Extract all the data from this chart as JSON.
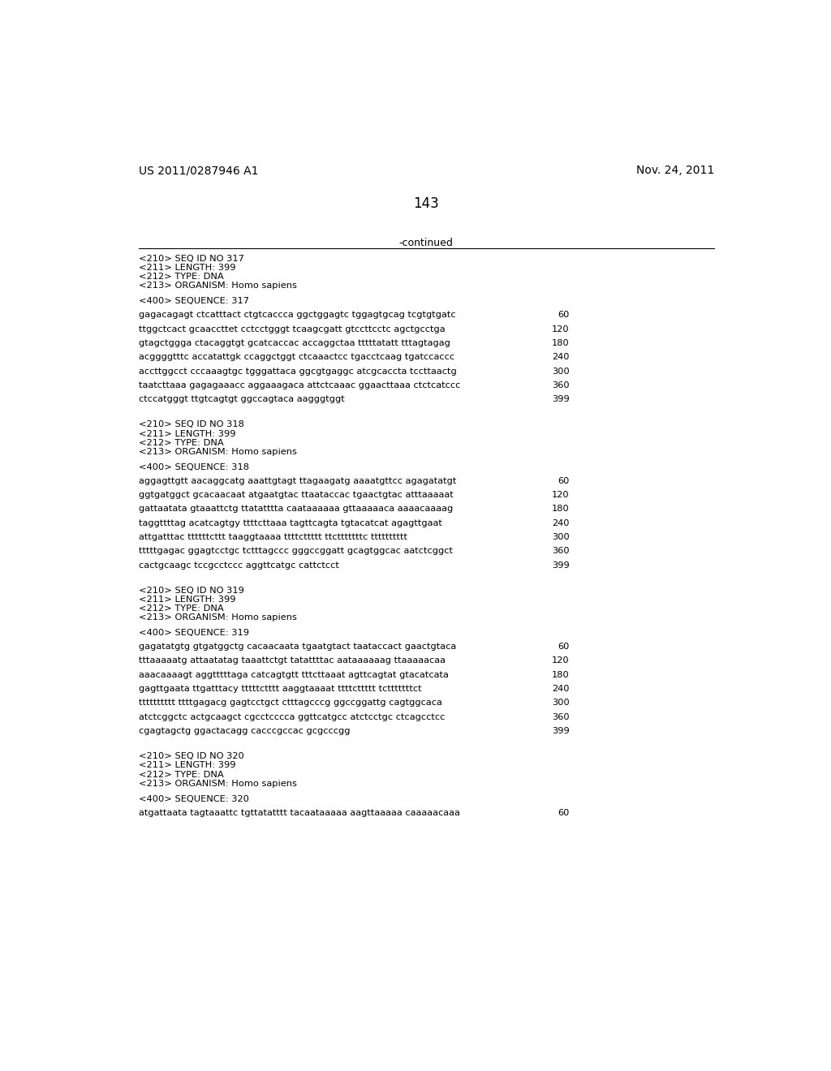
{
  "header_left": "US 2011/0287946 A1",
  "header_right": "Nov. 24, 2011",
  "page_number": "143",
  "continued_label": "-continued",
  "background_color": "#ffffff",
  "text_color": "#000000",
  "sequences": [
    {
      "id": "317",
      "length": "399",
      "type": "DNA",
      "organism": "Homo sapiens",
      "lines": [
        [
          "gagacagagt ctcatttact ctgtcaccca ggctggagtc tggagtgcag tcgtgtgatc",
          "60"
        ],
        [
          "ttggctcact gcaaccttet cctcctgggt tcaagcgatt gtccttcctc agctgcctga",
          "120"
        ],
        [
          "gtagctggga ctacaggtgt gcatcaccac accaggctaa tttttatatt tttagtagag",
          "180"
        ],
        [
          "acggggtttc accatattgk ccaggctggt ctcaaactcc tgacctcaag tgatccaccc",
          "240"
        ],
        [
          "accttggcct cccaaagtgc tgggattaca ggcgtgaggc atcgcaccta tccttaactg",
          "300"
        ],
        [
          "taatcttaaa gagagaaacc aggaaagaca attctcaaac ggaacttaaa ctctcatccc",
          "360"
        ],
        [
          "ctccatgggt ttgtcagtgt ggccagtaca aagggtggt",
          "399"
        ]
      ]
    },
    {
      "id": "318",
      "length": "399",
      "type": "DNA",
      "organism": "Homo sapiens",
      "lines": [
        [
          "aggagttgtt aacaggcatg aaattgtagt ttagaagatg aaaatgttcc agagatatgt",
          "60"
        ],
        [
          "ggtgatggct gcacaacaat atgaatgtac ttaataccac tgaactgtac atttaaaaat",
          "120"
        ],
        [
          "gattaatata gtaaattctg ttatatttta caataaaaaa gttaaaaaca aaaacaaaag",
          "180"
        ],
        [
          "taggttttag acatcagtgy ttttcttaaa tagttcagta tgtacatcat agagttgaat",
          "240"
        ],
        [
          "attgatttac ttttttcttt taaggtaaaa ttttcttttt ttctttttttc tttttttttt",
          "300"
        ],
        [
          "tttttgagac ggagtcctgc tctttagccc gggccggatt gcagtggcac aatctcggct",
          "360"
        ],
        [
          "cactgcaagc tccgcctccc aggttcatgc cattctcct",
          "399"
        ]
      ]
    },
    {
      "id": "319",
      "length": "399",
      "type": "DNA",
      "organism": "Homo sapiens",
      "lines": [
        [
          "gagatatgtg gtgatggctg cacaacaata tgaatgtact taataccact gaactgtaca",
          "60"
        ],
        [
          "tttaaaaatg attaatatag taaattctgt tatattttac aataaaaaag ttaaaaacaa",
          "120"
        ],
        [
          "aaacaaaagt aggtttttaga catcagtgtt tttcttaaat agttcagtat gtacatcata",
          "180"
        ],
        [
          "gagttgaata ttgatttacy tttttctttt aaggtaaaat ttttcttttt tctttttttct",
          "240"
        ],
        [
          "tttttttttt ttttgagacg gagtcctgct ctttagcccg ggccggattg cagtggcaca",
          "300"
        ],
        [
          "atctcggctc actgcaagct cgcctcccca ggttcatgcc atctcctgc ctcagcctcc",
          "360"
        ],
        [
          "cgagtagctg ggactacagg cacccgccac gcgcccgg",
          "399"
        ]
      ]
    },
    {
      "id": "320",
      "length": "399",
      "type": "DNA",
      "organism": "Homo sapiens",
      "lines": [
        [
          "atgattaata tagtaaattc tgttatatttt tacaataaaaa aagttaaaaa caaaaacaaa",
          "60"
        ]
      ]
    }
  ]
}
